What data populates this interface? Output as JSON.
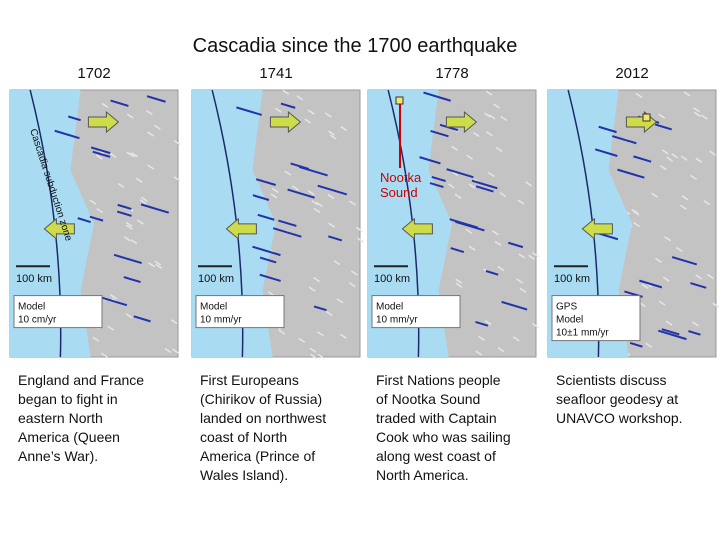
{
  "title": "Cascadia since the 1700 earthquake",
  "panels": [
    {
      "year": "1702",
      "scale": "100 km",
      "legend": [
        "Model",
        "10 cm/yr"
      ],
      "fault_label": "Cascadia subduction zone",
      "caption": [
        "England and France",
        "began to fight in",
        "eastern North",
        "America (Queen",
        "Anne’s War)."
      ]
    },
    {
      "year": "1741",
      "scale": "100 km",
      "legend": [
        "Model",
        "10 mm/yr"
      ],
      "caption": [
        "First Europeans",
        "(Chirikov of Russia)",
        "landed on northwest",
        "coast of North",
        "America (Prince of",
        "Wales Island)."
      ]
    },
    {
      "year": "1778",
      "scale": "100 km",
      "legend": [
        "Model",
        "10 mm/yr"
      ],
      "annotation": [
        "Nootka",
        "Sound"
      ],
      "caption": [
        "First Nations people",
        "of Nootka Sound",
        "traded with Captain",
        "Cook who was sailing",
        "along west coast of",
        "North America."
      ]
    },
    {
      "year": "2012",
      "scale": "100 km",
      "legend": [
        "GPS",
        "Model",
        "10±1 mm/yr"
      ],
      "caption": [
        "Scientists discuss",
        "seafloor geodesy at",
        "UNAVCO workshop."
      ]
    }
  ]
}
